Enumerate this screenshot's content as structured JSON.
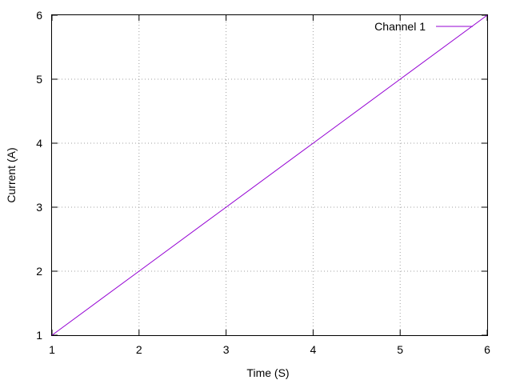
{
  "chart_data": {
    "type": "line",
    "xlabel": "Time (S)",
    "ylabel": "Current (A)",
    "xlim": [
      1,
      6
    ],
    "ylim": [
      1,
      6
    ],
    "xticks": [
      1,
      2,
      3,
      4,
      5,
      6
    ],
    "yticks": [
      1,
      2,
      3,
      4,
      5,
      6
    ],
    "grid": true,
    "legend_position": "top-right",
    "series": [
      {
        "name": "Channel 1",
        "color": "#9400d3",
        "x": [
          1,
          2,
          3,
          4,
          5,
          6
        ],
        "y": [
          1,
          2,
          3,
          4,
          5,
          6
        ]
      }
    ]
  }
}
